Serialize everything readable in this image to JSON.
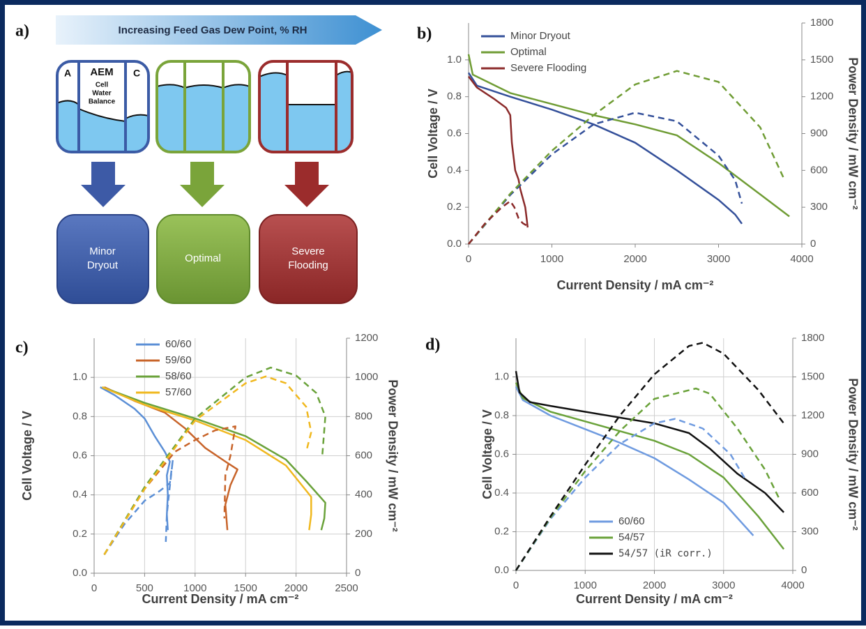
{
  "diagram": {
    "panel_label": "a)",
    "arrow_text": "Increasing Feed Gas Dew Point, % RH",
    "cell_labels": {
      "anode": "A",
      "membrane": "AEM",
      "balance": [
        "Cell",
        "Water",
        "Balance"
      ],
      "cathode": "C"
    },
    "outcomes": [
      [
        "Minor",
        "Dryout"
      ],
      [
        "Optimal"
      ],
      [
        "Severe",
        "Flooding"
      ]
    ]
  },
  "chart_data": [
    {
      "type": "line",
      "panel_label": "b)",
      "xlabel": "Current Density / mA cm⁻²",
      "ylabel": "Cell Voltage / V",
      "y2label": "Power Density / mW cm⁻²",
      "xlim": [
        0,
        4000
      ],
      "xticks": [
        0,
        1000,
        2000,
        3000,
        4000
      ],
      "ylim": [
        0,
        1.2
      ],
      "yticks": [
        {
          "value": 0,
          "label": "0.0"
        },
        0.2,
        0.4,
        0.6,
        0.8,
        {
          "value": 1,
          "label": "1.0"
        }
      ],
      "y2lim": [
        0,
        1800
      ],
      "y2ticks": [
        0,
        300,
        600,
        900,
        1200,
        1500,
        1800
      ],
      "grid": false,
      "series": [
        {
          "name": "Minor Dryout",
          "color": "#34509a",
          "x": [
            0,
            100,
            500,
            1000,
            1500,
            2000,
            2500,
            3000,
            3200,
            3280
          ],
          "values": [
            0.93,
            0.86,
            0.8,
            0.73,
            0.65,
            0.55,
            0.4,
            0.24,
            0.16,
            0.11
          ]
        },
        {
          "name": "Optimal",
          "color": "#6f9c34",
          "x": [
            0,
            50,
            500,
            1000,
            1500,
            2000,
            2500,
            3000,
            3500,
            3850
          ],
          "values": [
            1.03,
            0.92,
            0.82,
            0.76,
            0.7,
            0.65,
            0.59,
            0.44,
            0.27,
            0.15
          ]
        },
        {
          "name": "Severe Flooding",
          "color": "#8b2a2a",
          "x": [
            0,
            100,
            300,
            450,
            500,
            520,
            560,
            600,
            620,
            650,
            680,
            700,
            710
          ],
          "values": [
            0.91,
            0.85,
            0.79,
            0.74,
            0.7,
            0.55,
            0.4,
            0.35,
            0.3,
            0.25,
            0.2,
            0.13,
            0.09
          ]
        },
        {
          "color": "#34509a",
          "dash": true,
          "axis": "y2",
          "x": [
            0,
            500,
            1000,
            1500,
            2000,
            2500,
            3000,
            3200,
            3280
          ],
          "values": [
            0,
            400,
            730,
            975,
            1070,
            1000,
            720,
            520,
            330
          ]
        },
        {
          "color": "#6f9c34",
          "dash": true,
          "axis": "y2",
          "x": [
            0,
            500,
            1000,
            1500,
            2000,
            2500,
            3000,
            3500,
            3780
          ],
          "values": [
            0,
            410,
            760,
            1050,
            1300,
            1410,
            1320,
            950,
            540
          ]
        },
        {
          "color": "#8b2a2a",
          "dash": true,
          "axis": "y2",
          "x": [
            0,
            200,
            400,
            500,
            550,
            600,
            650,
            700
          ],
          "values": [
            0,
            170,
            300,
            350,
            300,
            210,
            170,
            150
          ]
        }
      ]
    },
    {
      "type": "line",
      "panel_label": "c)",
      "xlabel": "Current Density / mA cm⁻²",
      "ylabel": "Cell Voltage / V",
      "y2label": "Power Density / mW cm⁻²",
      "xlim": [
        0,
        2500
      ],
      "xticks": [
        0,
        500,
        1000,
        1500,
        2000,
        2500
      ],
      "ylim": [
        0,
        1.2
      ],
      "yticks": [
        {
          "value": 0,
          "label": "0.0"
        },
        0.2,
        0.4,
        0.6,
        0.8,
        {
          "value": 1,
          "label": "1.0"
        }
      ],
      "y2lim": [
        0,
        1200
      ],
      "y2ticks": [
        0,
        200,
        400,
        600,
        800,
        1000,
        1200
      ],
      "grid": true,
      "series": [
        {
          "name": "60/60",
          "color": "#5b8fd6",
          "x": [
            60,
            200,
            400,
            500,
            600,
            700,
            750,
            720,
            730,
            720,
            730
          ],
          "values": [
            0.95,
            0.91,
            0.84,
            0.79,
            0.7,
            0.62,
            0.57,
            0.5,
            0.4,
            0.3,
            0.22
          ]
        },
        {
          "name": "59/60",
          "color": "#c8642a",
          "x": [
            100,
            400,
            700,
            900,
            1100,
            1300,
            1420,
            1350,
            1300,
            1320
          ],
          "values": [
            0.95,
            0.88,
            0.82,
            0.74,
            0.64,
            0.57,
            0.53,
            0.45,
            0.35,
            0.22
          ]
        },
        {
          "name": "58/60",
          "color": "#6aa23a",
          "x": [
            80,
            500,
            1000,
            1500,
            1900,
            2100,
            2290,
            2280,
            2250
          ],
          "values": [
            0.95,
            0.87,
            0.79,
            0.7,
            0.58,
            0.47,
            0.36,
            0.28,
            0.22
          ]
        },
        {
          "name": "57/60",
          "color": "#f0b81e",
          "x": [
            80,
            500,
            1000,
            1500,
            1900,
            2150,
            2150,
            2130
          ],
          "values": [
            0.95,
            0.86,
            0.78,
            0.68,
            0.55,
            0.39,
            0.3,
            0.22
          ]
        },
        {
          "color": "#5b8fd6",
          "dash": true,
          "axis": "y2",
          "x": [
            100,
            300,
            500,
            650,
            750,
            780,
            740,
            720,
            710
          ],
          "values": [
            95,
            250,
            370,
            420,
            460,
            580,
            400,
            300,
            160
          ]
        },
        {
          "color": "#c8642a",
          "dash": true,
          "axis": "y2",
          "x": [
            100,
            500,
            800,
            1000,
            1200,
            1400,
            1350,
            1300,
            1290
          ],
          "values": [
            95,
            430,
            620,
            680,
            730,
            750,
            600,
            500,
            280
          ]
        },
        {
          "color": "#6aa23a",
          "dash": true,
          "axis": "y2",
          "x": [
            100,
            500,
            1000,
            1500,
            1750,
            2000,
            2200,
            2290,
            2260
          ],
          "values": [
            95,
            440,
            790,
            1000,
            1050,
            1010,
            920,
            800,
            600
          ]
        },
        {
          "color": "#f0b81e",
          "dash": true,
          "axis": "y2",
          "x": [
            100,
            500,
            1000,
            1500,
            1700,
            1900,
            2100,
            2150,
            2100
          ],
          "values": [
            95,
            430,
            780,
            970,
            1005,
            970,
            850,
            720,
            620
          ]
        }
      ]
    },
    {
      "type": "line",
      "panel_label": "d)",
      "xlabel": "Current Density / mA cm⁻²",
      "ylabel": "Cell Voltage / V",
      "y2label": "Power Density / mW cm⁻²",
      "xlim": [
        0,
        4000
      ],
      "xticks": [
        0,
        1000,
        2000,
        3000,
        4000
      ],
      "ylim": [
        0,
        1.2
      ],
      "yticks": [
        {
          "value": 0,
          "label": "0.0"
        },
        0.2,
        0.4,
        0.6,
        0.8,
        {
          "value": 1,
          "label": "1.0"
        }
      ],
      "y2lim": [
        0,
        1800
      ],
      "y2ticks": [
        0,
        300,
        600,
        900,
        1200,
        1500,
        1800
      ],
      "grid": true,
      "series": [
        {
          "name": "60/60",
          "color": "#6f9be0",
          "x": [
            0,
            100,
            500,
            1000,
            1500,
            2000,
            2500,
            3000,
            3430
          ],
          "values": [
            0.95,
            0.88,
            0.8,
            0.73,
            0.66,
            0.58,
            0.47,
            0.35,
            0.18
          ]
        },
        {
          "name": "54/57",
          "color": "#6aa23a",
          "x": [
            0,
            100,
            500,
            1000,
            1500,
            2000,
            2500,
            3000,
            3500,
            3870
          ],
          "values": [
            0.97,
            0.89,
            0.82,
            0.77,
            0.72,
            0.67,
            0.6,
            0.48,
            0.28,
            0.11
          ]
        },
        {
          "name": "54/57 (iR corr.)",
          "color": "#111111",
          "x": [
            0,
            50,
            200,
            500,
            1000,
            1500,
            2000,
            2500,
            2800,
            3200,
            3600,
            3870
          ],
          "values": [
            1.03,
            0.92,
            0.87,
            0.85,
            0.82,
            0.79,
            0.76,
            0.71,
            0.63,
            0.5,
            0.4,
            0.3
          ]
        },
        {
          "color": "#6f9be0",
          "dash": true,
          "axis": "y2",
          "x": [
            0,
            500,
            1000,
            1500,
            2000,
            2300,
            2700,
            3100,
            3300
          ],
          "values": [
            0,
            400,
            720,
            980,
            1140,
            1175,
            1100,
            900,
            720
          ]
        },
        {
          "color": "#6aa23a",
          "dash": true,
          "axis": "y2",
          "x": [
            0,
            500,
            1000,
            1500,
            2000,
            2600,
            2800,
            3200,
            3600,
            3800
          ],
          "values": [
            0,
            410,
            770,
            1080,
            1330,
            1410,
            1370,
            1100,
            780,
            560
          ]
        },
        {
          "color": "#111111",
          "dash": true,
          "axis": "y2",
          "x": [
            0,
            500,
            1000,
            1500,
            2000,
            2500,
            2700,
            3000,
            3500,
            3870
          ],
          "values": [
            0,
            420,
            820,
            1200,
            1520,
            1740,
            1765,
            1680,
            1400,
            1140
          ]
        }
      ]
    }
  ]
}
